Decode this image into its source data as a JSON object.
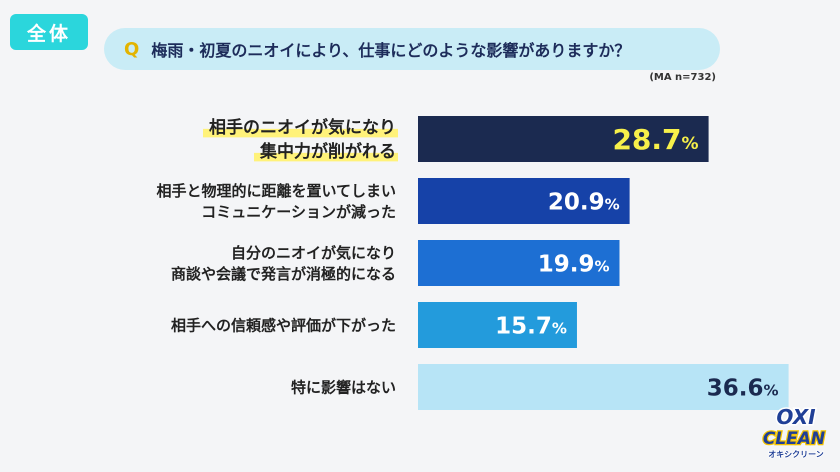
{
  "tag": "全体",
  "question": {
    "q": "Q",
    "text": "梅雨・初夏のニオイにより、仕事にどのような影響がありますか？"
  },
  "note": "(MA n=732)",
  "logo": {
    "line1": "OXI",
    "line2": "CLEAN",
    "line3": "オキシクリーン"
  },
  "colors": {
    "bars": [
      "#1b2a50",
      "#1642a8",
      "#1d6fd3",
      "#239bdc",
      "#b7e4f6"
    ],
    "highlight": "#fff27a",
    "value_highlight": "#f7f04a"
  },
  "chart_data": {
    "type": "bar",
    "orientation": "horizontal",
    "categories": [
      [
        "相手のニオイが気になり",
        "集中力が削がれる"
      ],
      [
        "相手と物理的に距離を置いてしまい",
        "コミュニケーションが減った"
      ],
      [
        "自分のニオイが気になり",
        "商談や会議で発言が消極的になる"
      ],
      [
        "相手への信頼感や評価が下がった"
      ],
      [
        "特に影響はない"
      ]
    ],
    "values": [
      28.7,
      20.9,
      19.9,
      15.7,
      36.6
    ],
    "unit": "%",
    "xlim": [
      0,
      40
    ],
    "grid": false,
    "legend": "none"
  }
}
